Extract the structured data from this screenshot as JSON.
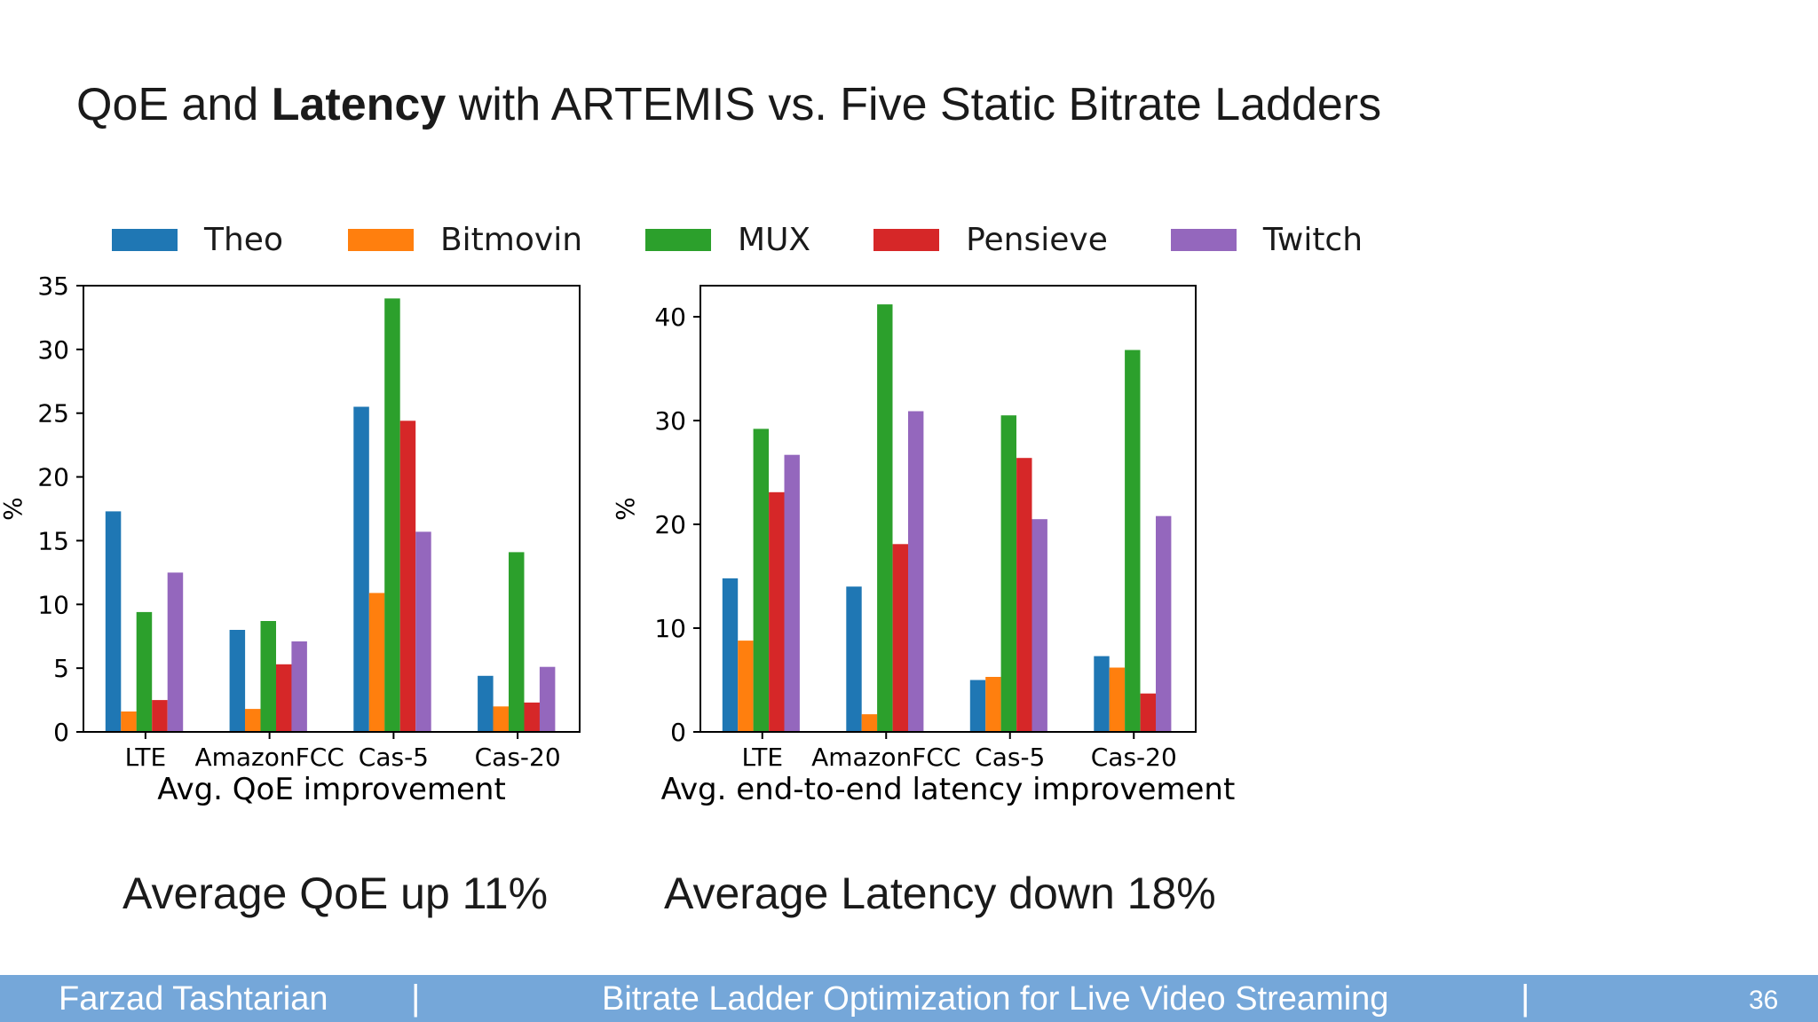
{
  "slide": {
    "title_part1": "QoE and ",
    "title_bold": "Latency",
    "title_part2": " with ARTEMIS vs. Five Static Bitrate Ladders",
    "summary_left": "Average QoE up 11%",
    "summary_right": "Average Latency down 18%"
  },
  "legend": [
    {
      "name": "Theo",
      "color": "#1f77b4"
    },
    {
      "name": "Bitmovin",
      "color": "#ff7f0e"
    },
    {
      "name": "MUX",
      "color": "#2ca02c"
    },
    {
      "name": "Pensieve",
      "color": "#d62728"
    },
    {
      "name": "Twitch",
      "color": "#9467bd"
    }
  ],
  "chart_data": [
    {
      "type": "bar",
      "xlabel": "Avg. QoE improvement",
      "ylabel": "%",
      "ylim": [
        0,
        35
      ],
      "yticks": [
        0,
        5,
        10,
        15,
        20,
        25,
        30,
        35
      ],
      "categories": [
        "LTE",
        "AmazonFCC",
        "Cas-5",
        "Cas-20"
      ],
      "series": [
        {
          "name": "Theo",
          "color": "#1f77b4",
          "values": [
            17.3,
            8.0,
            25.5,
            4.4
          ]
        },
        {
          "name": "Bitmovin",
          "color": "#ff7f0e",
          "values": [
            1.6,
            1.8,
            10.9,
            2.0
          ]
        },
        {
          "name": "MUX",
          "color": "#2ca02c",
          "values": [
            9.4,
            8.7,
            34.0,
            14.1
          ]
        },
        {
          "name": "Pensieve",
          "color": "#d62728",
          "values": [
            2.5,
            5.3,
            24.4,
            2.3
          ]
        },
        {
          "name": "Twitch",
          "color": "#9467bd",
          "values": [
            12.5,
            7.1,
            15.7,
            5.1
          ]
        }
      ],
      "grid": false
    },
    {
      "type": "bar",
      "xlabel": "Avg. end-to-end latency improvement",
      "ylabel": "%",
      "ylim": [
        0,
        43
      ],
      "yticks": [
        0,
        10,
        20,
        30,
        40
      ],
      "categories": [
        "LTE",
        "AmazonFCC",
        "Cas-5",
        "Cas-20"
      ],
      "series": [
        {
          "name": "Theo",
          "color": "#1f77b4",
          "values": [
            14.8,
            14.0,
            5.0,
            7.3
          ]
        },
        {
          "name": "Bitmovin",
          "color": "#ff7f0e",
          "values": [
            8.8,
            1.7,
            5.3,
            6.2
          ]
        },
        {
          "name": "MUX",
          "color": "#2ca02c",
          "values": [
            29.2,
            41.2,
            30.5,
            36.8
          ]
        },
        {
          "name": "Pensieve",
          "color": "#d62728",
          "values": [
            23.1,
            18.1,
            26.4,
            3.7
          ]
        },
        {
          "name": "Twitch",
          "color": "#9467bd",
          "values": [
            26.7,
            30.9,
            20.5,
            20.8
          ]
        }
      ],
      "grid": false
    }
  ],
  "footer": {
    "author": "Farzad Tashtarian",
    "separator": "|",
    "talk_title": "Bitrate Ladder Optimization for Live Video Streaming",
    "page_number": "36"
  }
}
